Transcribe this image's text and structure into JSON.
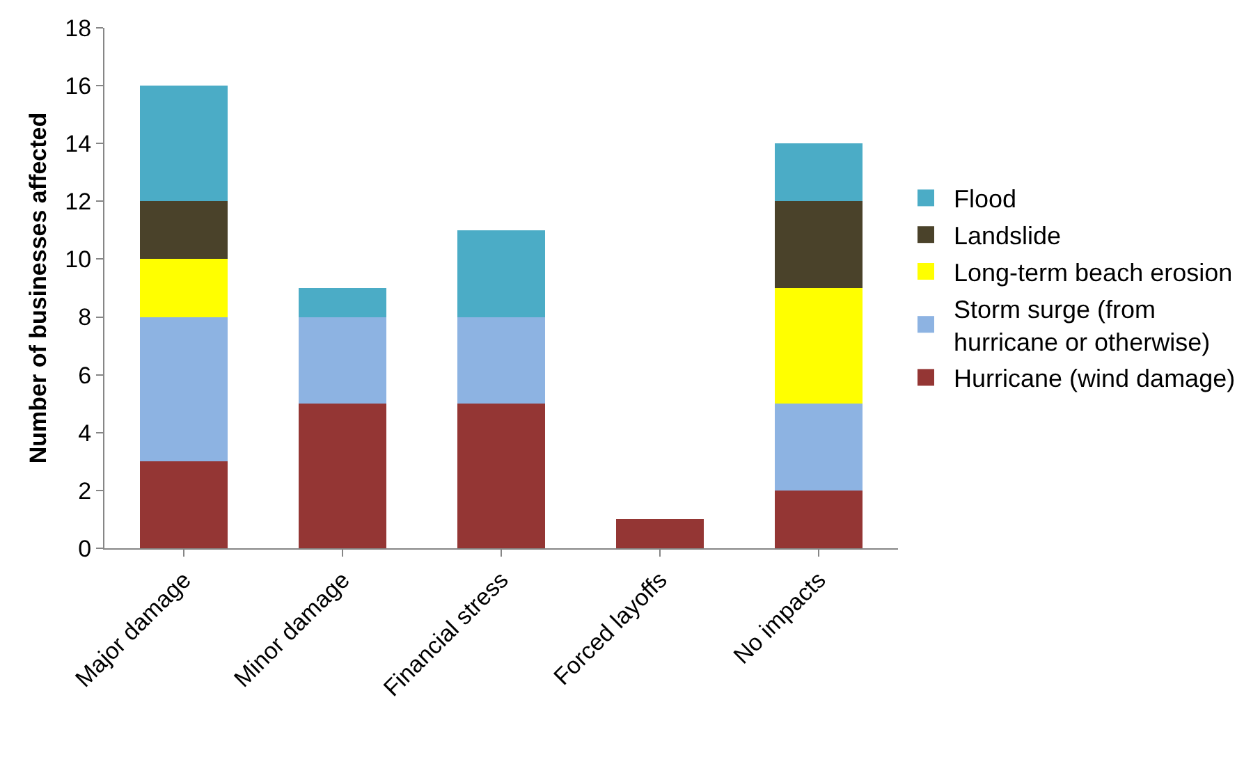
{
  "chart_data": {
    "type": "bar",
    "stacked": true,
    "ylabel": "Number of businesses affected",
    "categories": [
      "Major damage",
      "Minor damage",
      "Financial stress",
      "Forced layoffs",
      "No impacts"
    ],
    "series": [
      {
        "name": "Hurricane (wind damage)",
        "color": "#943634",
        "values": [
          3,
          5,
          5,
          1,
          2
        ]
      },
      {
        "name": "Storm surge (from\nhurricane or otherwise)",
        "color": "#8db3e2",
        "values": [
          5,
          3,
          3,
          null,
          3
        ]
      },
      {
        "name": "Long-term beach erosion",
        "color": "#ffff00",
        "values": [
          2,
          null,
          null,
          null,
          4
        ]
      },
      {
        "name": "Landslide",
        "color": "#4a422a",
        "values": [
          2,
          null,
          null,
          null,
          3
        ]
      },
      {
        "name": "Flood",
        "color": "#4bacc6",
        "values": [
          4,
          1,
          3,
          null,
          2
        ]
      }
    ],
    "ylim": [
      0,
      18
    ],
    "yticks": [
      0,
      2,
      4,
      6,
      8,
      10,
      12,
      14,
      16,
      18
    ],
    "legend": "right"
  }
}
